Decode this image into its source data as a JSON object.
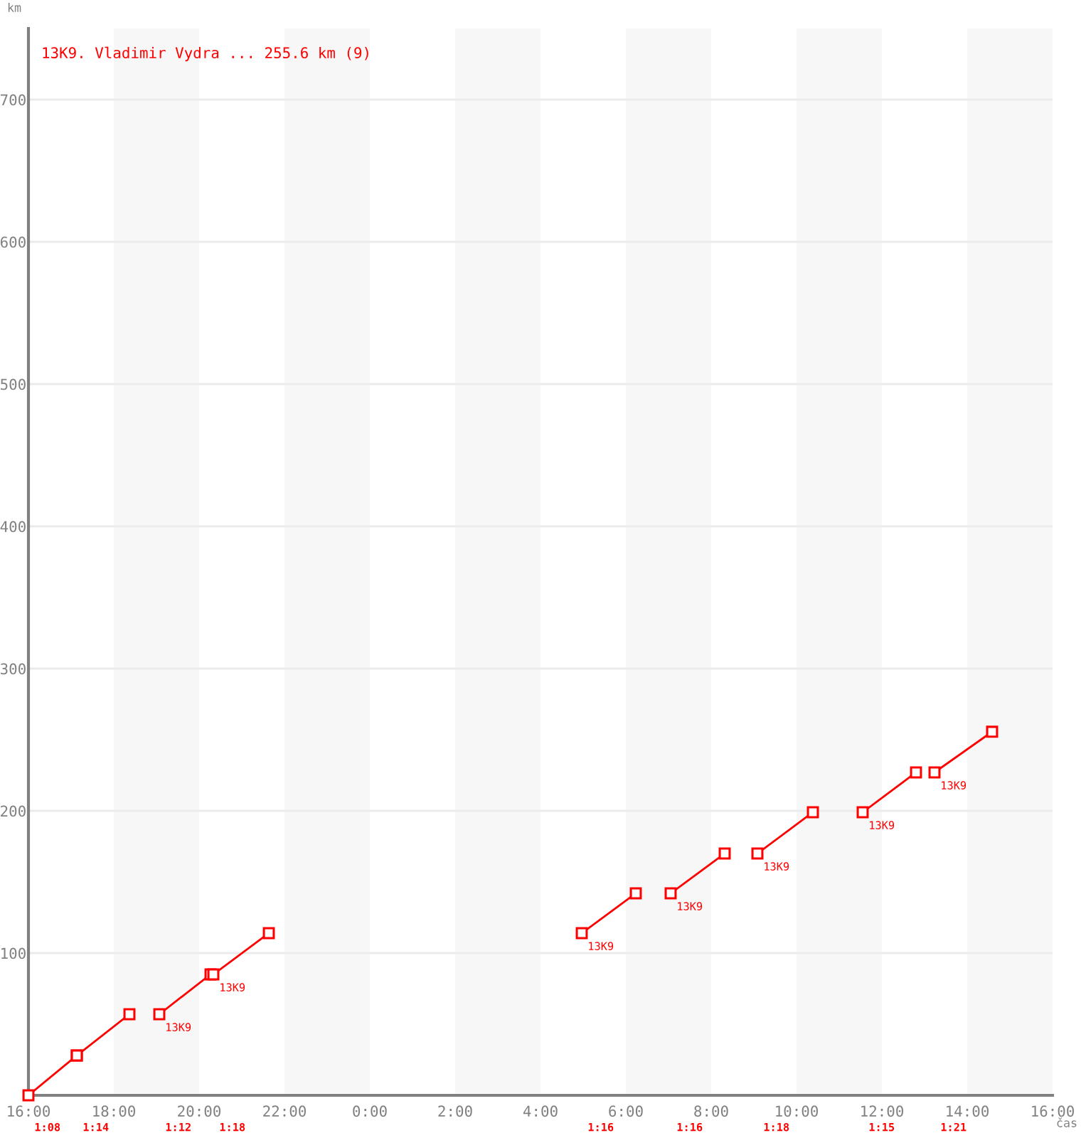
{
  "chart_data": {
    "type": "line",
    "title": "13K9. Vladimir Vydra ... 255.6 km (9)",
    "xlabel": "čas",
    "ylabel": "km",
    "series": [
      {
        "color": "#ff0000",
        "x": [
          "2000-01-01T16:00",
          "2000-01-01T17:08"
        ],
        "values": [
          0,
          28
        ]
      },
      {
        "color": "#ff0000",
        "x": [
          "2000-01-01T17:08",
          "2000-01-01T18:22"
        ],
        "values": [
          28,
          57
        ]
      },
      {
        "color": "#ff0000",
        "x": [
          "2000-01-01T19:04",
          "2000-01-01T20:16"
        ],
        "values": [
          57,
          85
        ]
      },
      {
        "color": "#ff0000",
        "x": [
          "2000-01-01T20:20",
          "2000-01-01T21:38"
        ],
        "values": [
          85,
          114
        ]
      },
      {
        "color": "#ff0000",
        "x": [
          "2000-01-02T04:58",
          "2000-01-02T06:14"
        ],
        "values": [
          114,
          142
        ]
      },
      {
        "color": "#ff0000",
        "x": [
          "2000-01-02T07:03",
          "2000-01-02T08:19"
        ],
        "values": [
          142,
          170
        ]
      },
      {
        "color": "#ff0000",
        "x": [
          "2000-01-02T09:05",
          "2000-01-02T10:23"
        ],
        "values": [
          170,
          199
        ]
      },
      {
        "color": "#ff0000",
        "x": [
          "2000-01-02T11:33",
          "2000-01-02T12:48"
        ],
        "values": [
          199,
          227
        ]
      },
      {
        "color": "#ff0000",
        "x": [
          "2000-01-02T13:14",
          "2000-01-02T14:35"
        ],
        "values": [
          227,
          255.6
        ]
      }
    ],
    "xlim": [
      "2000-01-01T16:00",
      "2000-01-02T16:00"
    ],
    "xticks": [
      {
        "value": "2000-01-01T16:00",
        "label": "16:00"
      },
      {
        "value": "2000-01-01T18:00",
        "label": "18:00"
      },
      {
        "value": "2000-01-01T20:00",
        "label": "20:00"
      },
      {
        "value": "2000-01-01T22:00",
        "label": "22:00"
      },
      {
        "value": "2000-01-02T00:00",
        "label": "0:00"
      },
      {
        "value": "2000-01-02T02:00",
        "label": "2:00"
      },
      {
        "value": "2000-01-02T04:00",
        "label": "4:00"
      },
      {
        "value": "2000-01-02T06:00",
        "label": "6:00"
      },
      {
        "value": "2000-01-02T08:00",
        "label": "8:00"
      },
      {
        "value": "2000-01-02T10:00",
        "label": "10:00"
      },
      {
        "value": "2000-01-02T12:00",
        "label": "12:00"
      },
      {
        "value": "2000-01-02T14:00",
        "label": "14:00"
      },
      {
        "value": "2000-01-02T16:00",
        "label": "16:00"
      }
    ],
    "ylim": [
      0,
      750
    ],
    "yticks": [
      100,
      200,
      300,
      400,
      500,
      600,
      700
    ],
    "grid": "y",
    "marker": "square",
    "line_style": "solid",
    "bands": [
      {
        "axis": "x",
        "from": "2000-01-01T18:00",
        "to": "2000-01-01T20:00",
        "color": "#f7f7f7"
      },
      {
        "axis": "x",
        "from": "2000-01-01T22:00",
        "to": "2000-01-02T00:00",
        "color": "#f7f7f7"
      },
      {
        "axis": "x",
        "from": "2000-01-02T02:00",
        "to": "2000-01-02T04:00",
        "color": "#f7f7f7"
      },
      {
        "axis": "x",
        "from": "2000-01-02T06:00",
        "to": "2000-01-02T08:00",
        "color": "#f7f7f7"
      },
      {
        "axis": "x",
        "from": "2000-01-02T10:00",
        "to": "2000-01-02T12:00",
        "color": "#f7f7f7"
      },
      {
        "axis": "x",
        "from": "2000-01-02T14:00",
        "to": "2000-01-02T16:00",
        "color": "#f7f7f7"
      }
    ],
    "annotations": [
      {
        "text": "13K9",
        "x": "2000-01-01T19:04",
        "y": 57
      },
      {
        "text": "13K9",
        "x": "2000-01-01T20:20",
        "y": 85
      },
      {
        "text": "13K9",
        "x": "2000-01-02T04:58",
        "y": 114
      },
      {
        "text": "13K9",
        "x": "2000-01-02T07:03",
        "y": 142
      },
      {
        "text": "13K9",
        "x": "2000-01-02T09:05",
        "y": 170
      },
      {
        "text": "13K9",
        "x": "2000-01-02T11:33",
        "y": 199
      },
      {
        "text": "13K9",
        "x": "2000-01-02T13:14",
        "y": 227
      },
      "1:08",
      "1:14",
      "1:12",
      "1:18",
      "1:16",
      "1:16",
      "1:18",
      "1:15",
      "1:21"
    ]
  }
}
